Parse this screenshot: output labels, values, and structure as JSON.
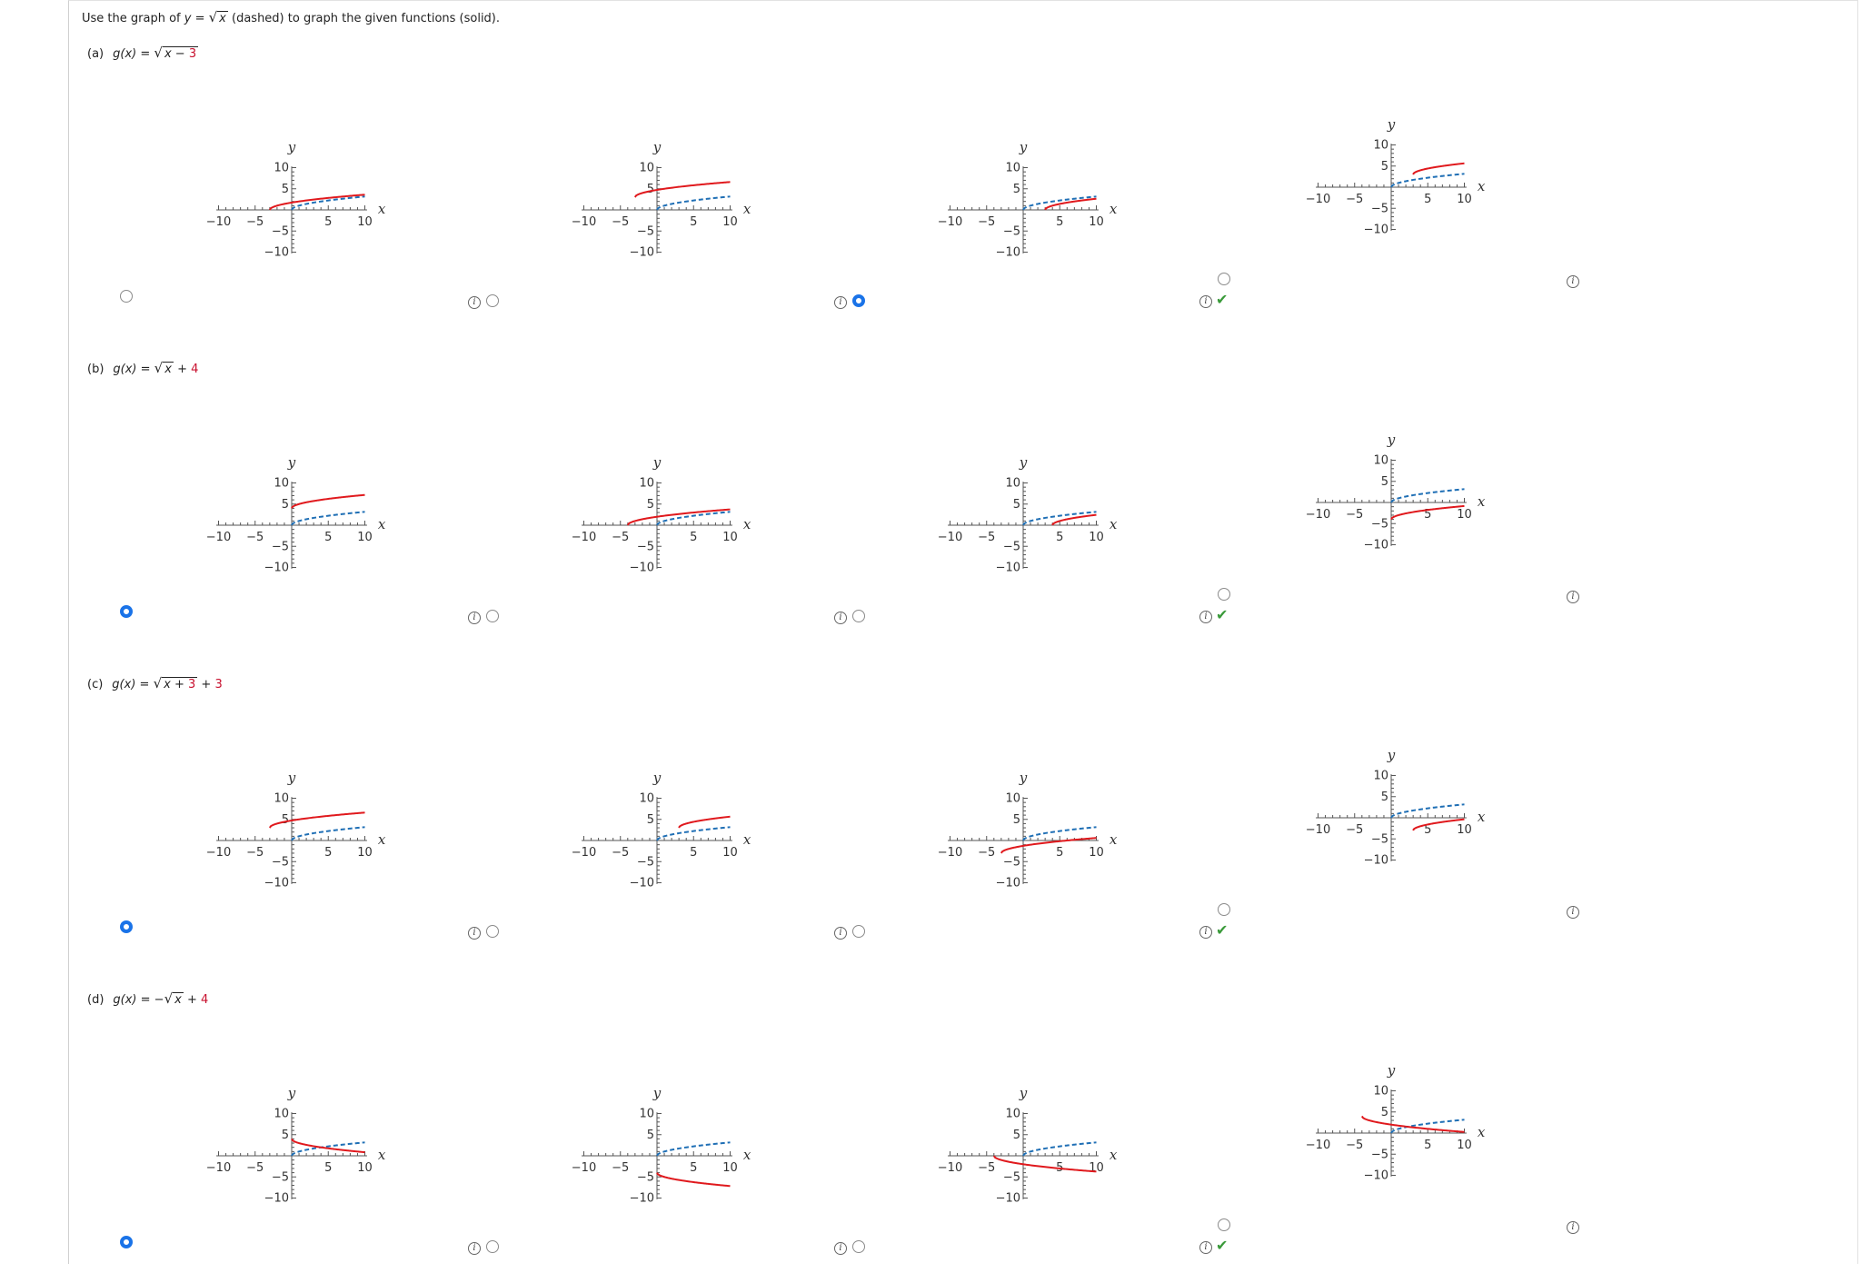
{
  "instruction": {
    "prefix": "Use the graph of ",
    "y_var": "y",
    "eq": " = ",
    "radicand": "x",
    "suffix": " (dashed) to graph the given functions (solid)."
  },
  "parts": [
    {
      "label": "(a)",
      "fn_name": "g(x)",
      "eq": " = ",
      "neg": "",
      "radicand_var": "x",
      "radicand_op": " − ",
      "radicand_const": "3",
      "outer_op": "",
      "outer_const": "",
      "choices": [
        {
          "selected": false,
          "correct": false,
          "red_curve": {
            "shift_x": -3,
            "shift_y": 0,
            "sign": 1
          }
        },
        {
          "selected": false,
          "correct": false,
          "red_curve": {
            "shift_x": -3,
            "shift_y": 3,
            "sign": 1
          }
        },
        {
          "selected": true,
          "correct": true,
          "red_curve": {
            "shift_x": 3,
            "shift_y": 0,
            "sign": 1
          }
        },
        {
          "selected": false,
          "correct": false,
          "red_curve": {
            "shift_x": 3,
            "shift_y": 3,
            "sign": 1
          }
        }
      ]
    },
    {
      "label": "(b)",
      "fn_name": "g(x)",
      "eq": " = ",
      "neg": "",
      "radicand_var": "x",
      "radicand_op": "",
      "radicand_const": "",
      "outer_op": " + ",
      "outer_const": "4",
      "choices": [
        {
          "selected": true,
          "correct": true,
          "red_curve": {
            "shift_x": 0,
            "shift_y": 4,
            "sign": 1
          }
        },
        {
          "selected": false,
          "correct": false,
          "red_curve": {
            "shift_x": -4,
            "shift_y": 0,
            "sign": 1
          }
        },
        {
          "selected": false,
          "correct": false,
          "red_curve": {
            "shift_x": 4,
            "shift_y": 0,
            "sign": 1
          }
        },
        {
          "selected": false,
          "correct": false,
          "red_curve": {
            "shift_x": 0,
            "shift_y": -4,
            "sign": 1
          }
        }
      ]
    },
    {
      "label": "(c)",
      "fn_name": "g(x)",
      "eq": " = ",
      "neg": "",
      "radicand_var": "x",
      "radicand_op": " + ",
      "radicand_const": "3",
      "outer_op": " + ",
      "outer_const": "3",
      "choices": [
        {
          "selected": true,
          "correct": true,
          "red_curve": {
            "shift_x": -3,
            "shift_y": 3,
            "sign": 1
          }
        },
        {
          "selected": false,
          "correct": false,
          "red_curve": {
            "shift_x": 3,
            "shift_y": 3,
            "sign": 1
          }
        },
        {
          "selected": false,
          "correct": false,
          "red_curve": {
            "shift_x": -3,
            "shift_y": -3,
            "sign": 1
          }
        },
        {
          "selected": false,
          "correct": false,
          "red_curve": {
            "shift_x": 3,
            "shift_y": -3,
            "sign": 1
          }
        }
      ]
    },
    {
      "label": "(d)",
      "fn_name": "g(x)",
      "eq": " = ",
      "neg": "−",
      "radicand_var": "x",
      "radicand_op": "",
      "radicand_const": "",
      "outer_op": " + ",
      "outer_const": "4",
      "choices": [
        {
          "selected": true,
          "correct": true,
          "red_curve": {
            "shift_x": 0,
            "shift_y": 4,
            "sign": -1
          }
        },
        {
          "selected": false,
          "correct": false,
          "red_curve": {
            "shift_x": 0,
            "shift_y": -4,
            "sign": -1
          }
        },
        {
          "selected": false,
          "correct": false,
          "red_curve": {
            "shift_x": -4,
            "shift_y": 0,
            "sign": -1
          }
        },
        {
          "selected": false,
          "correct": false,
          "red_curve": {
            "shift_x": -4,
            "shift_y": 4,
            "sign": -1
          }
        }
      ]
    }
  ],
  "axes": {
    "x_name": "x",
    "y_name": "y",
    "xlim": [
      -10,
      10
    ],
    "ylim": [
      -10,
      10
    ],
    "x_tick_labels": [
      "−10",
      "−5",
      "5",
      "10"
    ],
    "y_tick_labels": [
      "10",
      "5",
      "−5",
      "−10"
    ]
  },
  "info_glyph": "i",
  "check_glyph": "✔",
  "colors": {
    "dashed": "#1f6fb5",
    "solid": "#e0191d",
    "radio_selected": "#1a73e8",
    "check": "#3a9a3a"
  }
}
